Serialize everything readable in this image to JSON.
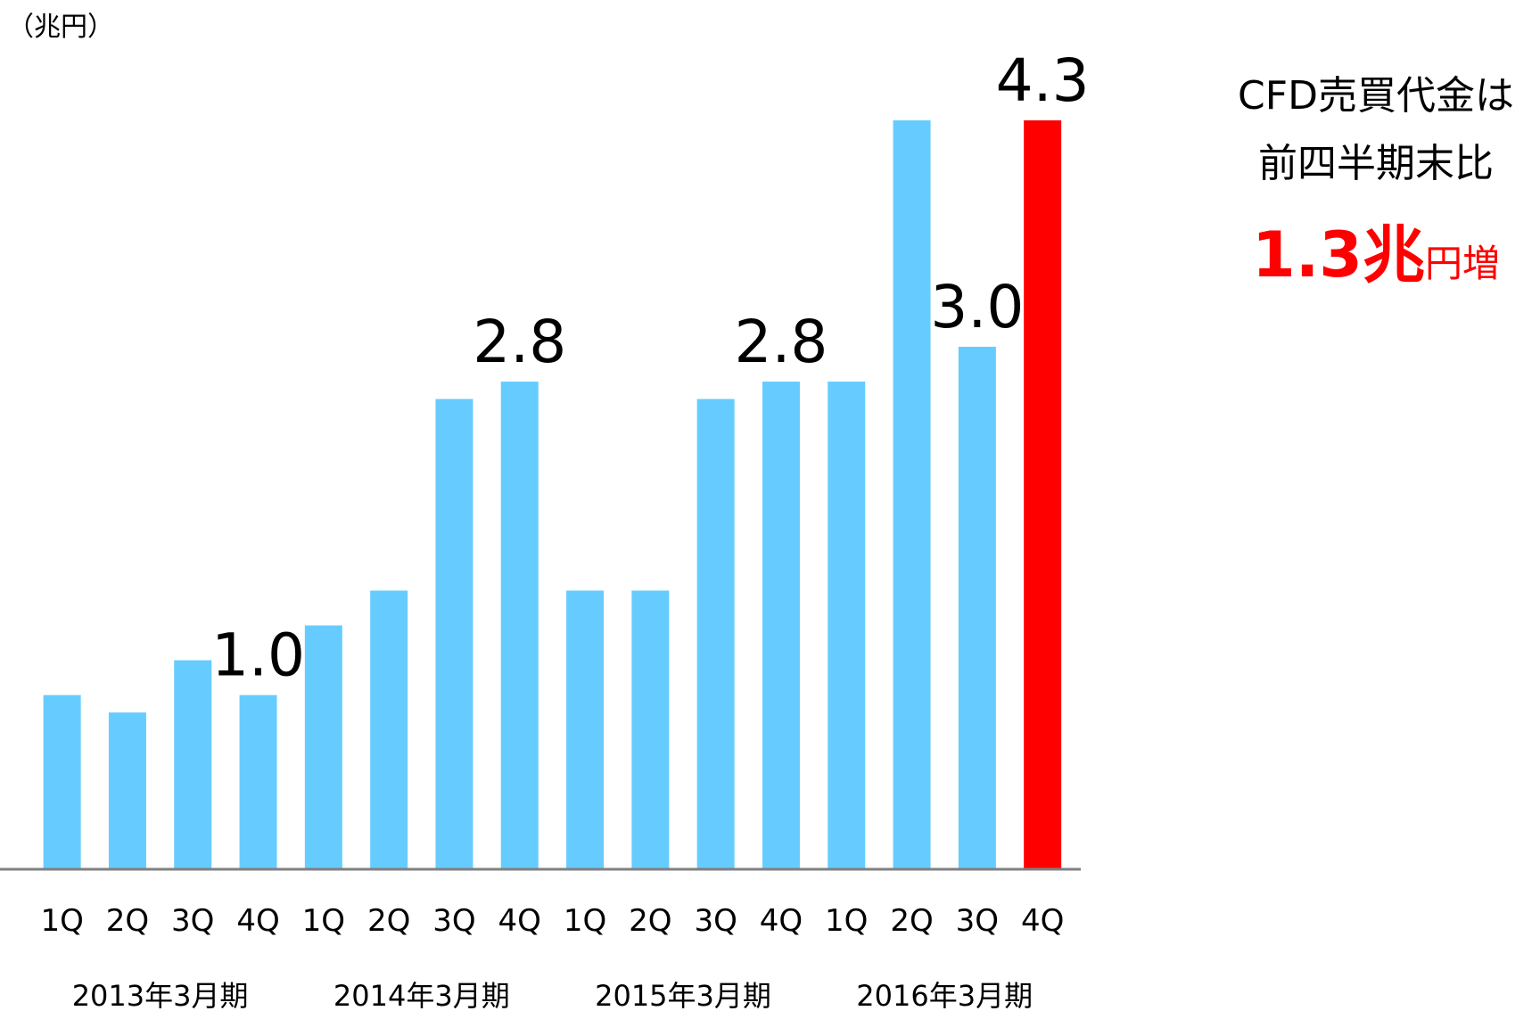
{
  "chart_data": {
    "type": "bar",
    "unit_label": "（兆円）",
    "categories": [
      "1Q",
      "2Q",
      "3Q",
      "4Q",
      "1Q",
      "2Q",
      "3Q",
      "4Q",
      "1Q",
      "2Q",
      "3Q",
      "4Q",
      "1Q",
      "2Q",
      "3Q",
      "4Q"
    ],
    "groups": [
      "2013年3月期",
      "2014年3月期",
      "2015年3月期",
      "2016年3月期"
    ],
    "values": [
      1.0,
      0.9,
      1.2,
      1.0,
      1.4,
      1.6,
      2.7,
      2.8,
      1.6,
      1.6,
      2.7,
      2.8,
      2.8,
      4.3,
      3.0,
      4.3
    ],
    "value_labels": [
      null,
      null,
      null,
      "1.0",
      null,
      null,
      null,
      "2.8",
      null,
      null,
      null,
      "2.8",
      null,
      null,
      "3.0",
      "4.3"
    ],
    "colors": [
      "#66ccff",
      "#66ccff",
      "#66ccff",
      "#66ccff",
      "#66ccff",
      "#66ccff",
      "#66ccff",
      "#66ccff",
      "#66ccff",
      "#66ccff",
      "#66ccff",
      "#66ccff",
      "#66ccff",
      "#66ccff",
      "#66ccff",
      "#ff0000"
    ],
    "ylim": [
      0,
      4.3
    ],
    "annotation": {
      "line1": "CFD売買代金は",
      "line2": "前四半期末比",
      "highlight": "1.3兆",
      "suffix": "円増"
    }
  }
}
